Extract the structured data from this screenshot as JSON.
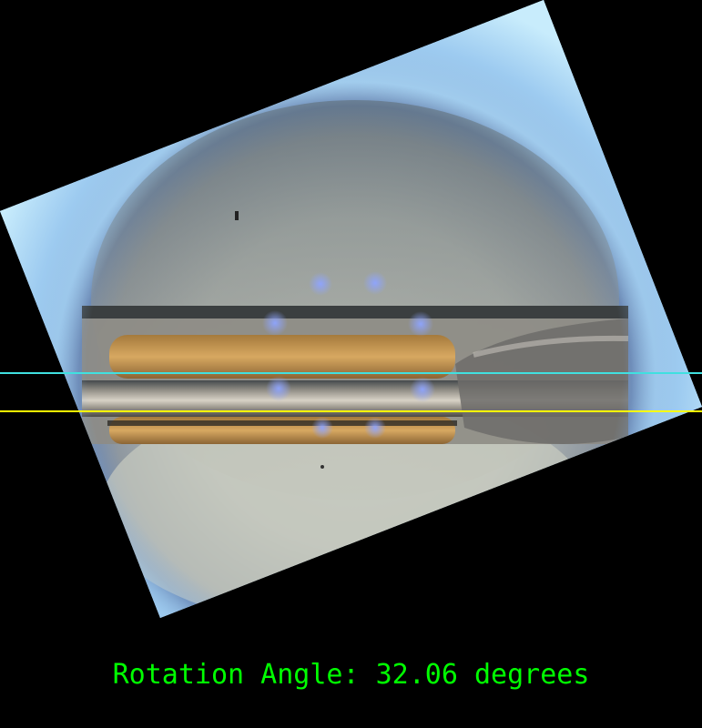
{
  "caption": {
    "text": "Rotation Angle: 32.06 degrees",
    "color": "#00ff00"
  },
  "rotation_angle_degrees": 32.06,
  "overlay_lines": [
    {
      "name": "cyan-reference-line",
      "color": "#40e0e0"
    },
    {
      "name": "yellow-reference-line",
      "color": "#ffff00"
    }
  ],
  "background_color": "#000000"
}
